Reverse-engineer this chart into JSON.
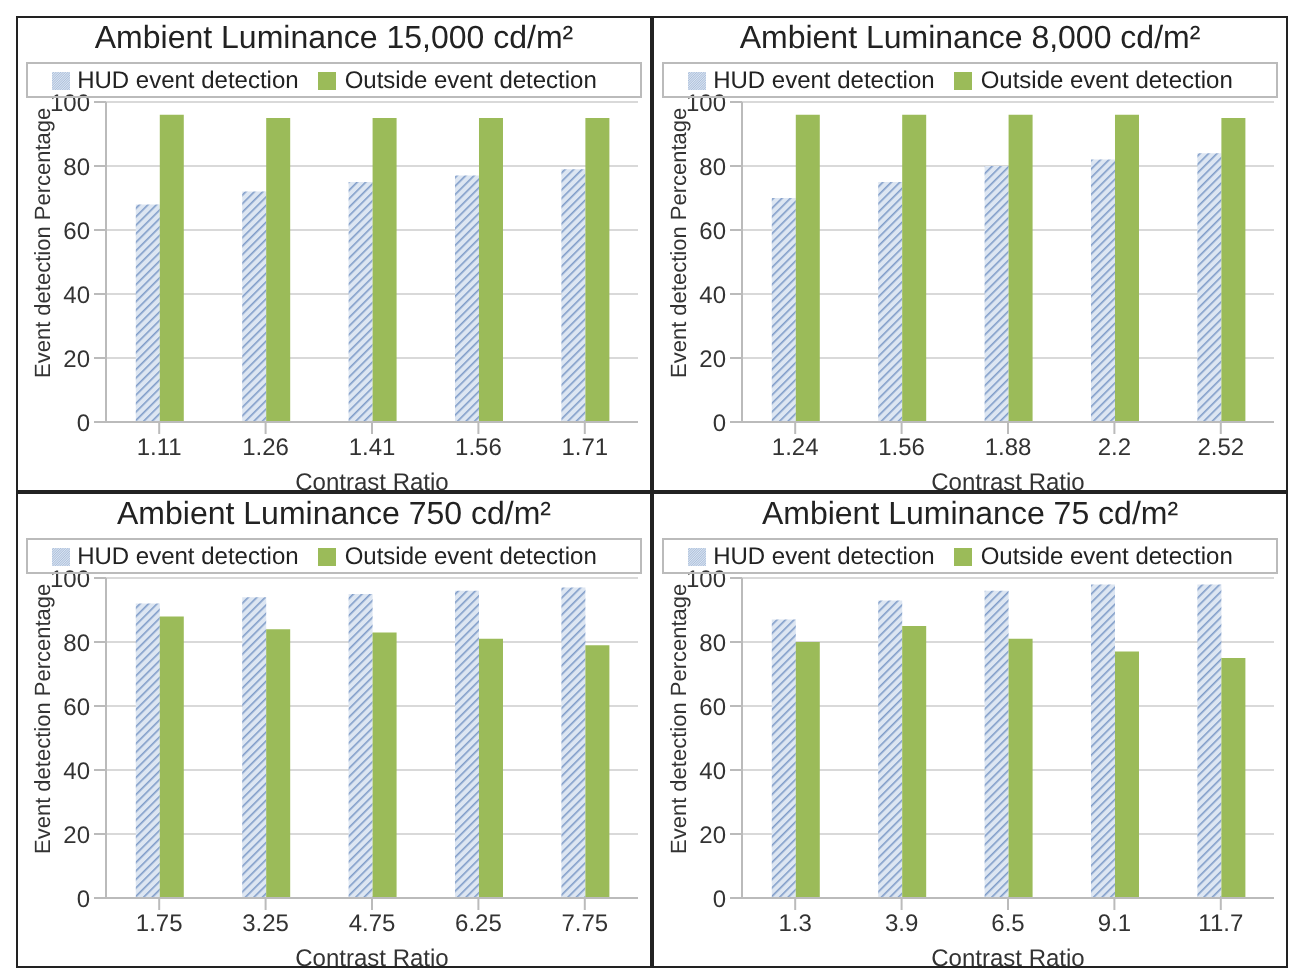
{
  "chart_data": [
    {
      "type": "bar",
      "title": "Ambient Luminance 15,000 cd/m²",
      "xlabel": "Contrast Ratio",
      "ylabel": "Event detection Percentage",
      "categories": [
        "1.11",
        "1.26",
        "1.41",
        "1.56",
        "1.71"
      ],
      "series": [
        {
          "name": "HUD event detection",
          "color": "#7f9cc8",
          "values": [
            68,
            72,
            75,
            77,
            79
          ]
        },
        {
          "name": "Outside event detection",
          "color": "#9bbb59",
          "values": [
            96,
            95,
            95,
            95,
            95
          ]
        }
      ],
      "ylim": [
        0,
        100
      ],
      "yticks": [
        0,
        20,
        40,
        60,
        80,
        100
      ],
      "grid": "y",
      "legend": "top"
    },
    {
      "type": "bar",
      "title": "Ambient Luminance 8,000 cd/m²",
      "xlabel": "Contrast Ratio",
      "ylabel": "Event detection Percentage",
      "categories": [
        "1.24",
        "1.56",
        "1.88",
        "2.2",
        "2.52"
      ],
      "series": [
        {
          "name": "HUD event detection",
          "color": "#7f9cc8",
          "values": [
            70,
            75,
            80,
            82,
            84
          ]
        },
        {
          "name": "Outside event detection",
          "color": "#9bbb59",
          "values": [
            96,
            96,
            96,
            96,
            95
          ]
        }
      ],
      "ylim": [
        0,
        100
      ],
      "yticks": [
        0,
        20,
        40,
        60,
        80,
        100
      ],
      "grid": "y",
      "legend": "top"
    },
    {
      "type": "bar",
      "title": "Ambient Luminance 750 cd/m²",
      "xlabel": "Contrast Ratio",
      "ylabel": "Event detection Percentage",
      "categories": [
        "1.75",
        "3.25",
        "4.75",
        "6.25",
        "7.75"
      ],
      "series": [
        {
          "name": "HUD event detection",
          "color": "#7f9cc8",
          "values": [
            92,
            94,
            95,
            96,
            97
          ]
        },
        {
          "name": "Outside event detection",
          "color": "#9bbb59",
          "values": [
            88,
            84,
            83,
            81,
            79
          ]
        }
      ],
      "ylim": [
        0,
        100
      ],
      "yticks": [
        0,
        20,
        40,
        60,
        80,
        100
      ],
      "grid": "y",
      "legend": "top"
    },
    {
      "type": "bar",
      "title": "Ambient Luminance 75 cd/m²",
      "xlabel": "Contrast Ratio",
      "ylabel": "Event detection Percentage",
      "categories": [
        "1.3",
        "3.9",
        "6.5",
        "9.1",
        "11.7"
      ],
      "series": [
        {
          "name": "HUD event detection",
          "color": "#7f9cc8",
          "values": [
            87,
            93,
            96,
            98,
            98
          ]
        },
        {
          "name": "Outside event detection",
          "color": "#9bbb59",
          "values": [
            80,
            85,
            81,
            77,
            75
          ]
        }
      ],
      "ylim": [
        0,
        100
      ],
      "yticks": [
        0,
        20,
        40,
        60,
        80,
        100
      ],
      "grid": "y",
      "legend": "top"
    }
  ]
}
